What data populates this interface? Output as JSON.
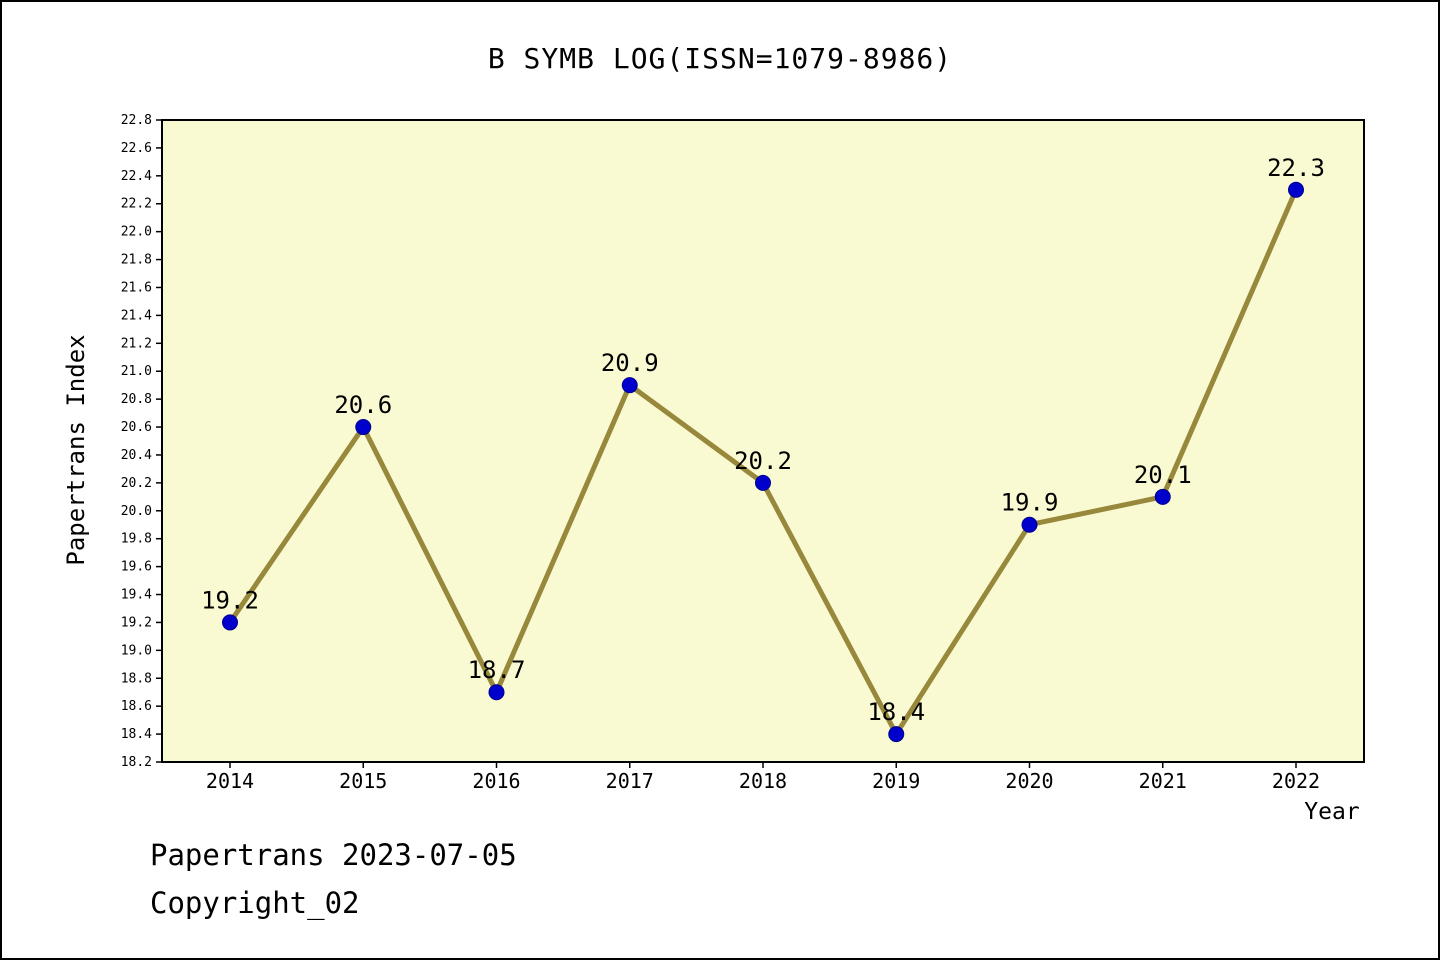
{
  "page": {
    "title": "B SYMB LOG(ISSN=1079-8986)",
    "footer_line1": "Papertrans 2023-07-05",
    "footer_line2": "Copyright_02"
  },
  "chart_data": {
    "type": "line",
    "title": "B SYMB LOG(ISSN=1079-8986)",
    "xlabel": "Year",
    "ylabel": "Papertrans Index",
    "x": [
      2014,
      2015,
      2016,
      2017,
      2018,
      2019,
      2020,
      2021,
      2022
    ],
    "values": [
      19.2,
      20.6,
      18.7,
      20.9,
      20.2,
      18.4,
      19.9,
      20.1,
      22.3
    ],
    "ylim": [
      18.2,
      22.8
    ],
    "ytick_step": 0.2,
    "grid": false,
    "legend_position": "none",
    "point_labels": [
      "19.2",
      "20.6",
      "18.7",
      "20.9",
      "20.2",
      "18.4",
      "19.9",
      "20.1",
      "22.3"
    ],
    "colors": {
      "line": "#97883B",
      "marker_fill": "#0000CD",
      "marker_edge": "#00008B",
      "plot_background": "#FAFAD2",
      "axis": "#000000"
    }
  }
}
